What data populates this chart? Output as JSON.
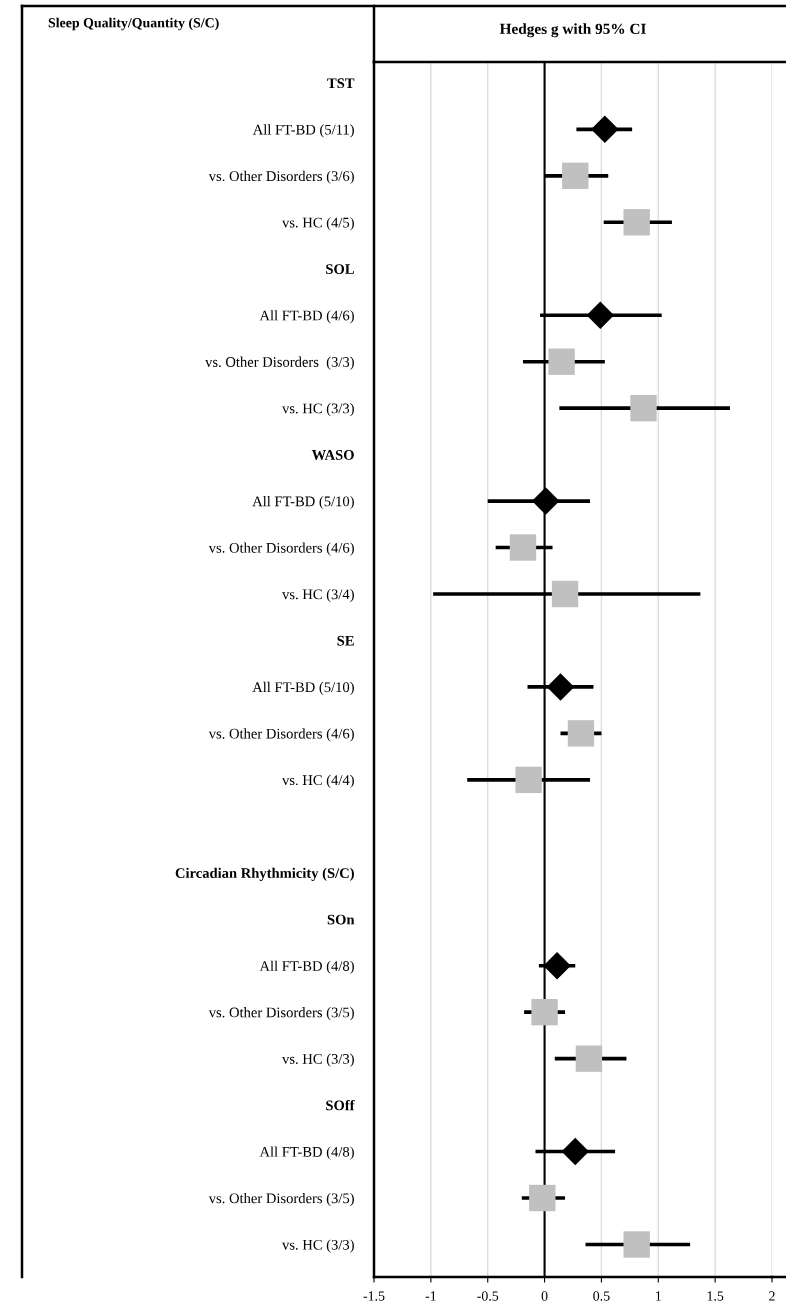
{
  "chart_data": {
    "type": "scatter",
    "orientation": "horizontal",
    "title": "Hedges g with 95% CI",
    "annotations": [
      "Sleep Quality/Quantity (S/C)"
    ],
    "categories": [
      "TST",
      "All FT-BD (5/11)",
      "vs. Other Disorders (3/6)",
      "vs. HC (4/5)",
      "SOL",
      "All FT-BD (4/6)",
      "vs. Other Disorders  (3/3)",
      "vs. HC (3/3)",
      "WASO",
      "All FT-BD (5/10)",
      "vs. Other Disorders (4/6)",
      "vs. HC (3/4)",
      "SE",
      "All FT-BD (5/10)",
      "vs. Other Disorders (4/6)",
      "vs. HC (4/4)",
      null,
      "Circadian Rhythmicity (S/C)",
      "SOn",
      "All FT-BD (4/8)",
      "vs. Other Disorders (3/5)",
      "vs. HC (3/3)",
      "SOff",
      "All FT-BD (4/8)",
      "vs. Other Disorders (3/5)",
      "vs. HC (3/3)"
    ],
    "series": [
      {
        "color": "#000000",
        "marker": "diamond",
        "values": [
          null,
          0.53,
          null,
          null,
          null,
          0.49,
          null,
          null,
          null,
          0.01,
          null,
          null,
          null,
          0.14,
          null,
          null,
          null,
          null,
          null,
          0.11,
          null,
          null,
          null,
          0.27,
          null,
          null
        ],
        "errors": [
          null,
          [
            0.28,
            0.77
          ],
          null,
          null,
          null,
          [
            -0.04,
            1.03
          ],
          null,
          null,
          null,
          [
            -0.5,
            0.4
          ],
          null,
          null,
          null,
          [
            -0.15,
            0.43
          ],
          null,
          null,
          null,
          null,
          null,
          [
            -0.05,
            0.27
          ],
          null,
          null,
          null,
          [
            -0.08,
            0.62
          ],
          null,
          null
        ]
      },
      {
        "color": "#c0c0c0",
        "marker": "square",
        "values": [
          null,
          null,
          0.27,
          0.81,
          null,
          null,
          0.15,
          0.87,
          null,
          null,
          -0.19,
          0.18,
          null,
          null,
          0.32,
          -0.14,
          null,
          null,
          null,
          null,
          0.0,
          0.39,
          null,
          null,
          -0.02,
          0.81
        ],
        "errors": [
          null,
          null,
          [
            0.0,
            0.56
          ],
          [
            0.52,
            1.12
          ],
          null,
          null,
          [
            -0.19,
            0.53
          ],
          [
            0.13,
            1.63
          ],
          null,
          null,
          [
            -0.43,
            0.07
          ],
          [
            -0.98,
            1.37
          ],
          null,
          null,
          [
            0.14,
            0.5
          ],
          [
            -0.68,
            0.4
          ],
          null,
          null,
          null,
          null,
          [
            -0.18,
            0.18
          ],
          [
            0.09,
            0.72
          ],
          null,
          null,
          [
            -0.2,
            0.18
          ],
          [
            0.36,
            1.28
          ]
        ]
      }
    ],
    "xlim": [
      -1.5,
      2
    ],
    "xticks": [
      -1.5,
      -1,
      -0.5,
      0,
      0.5,
      1,
      1.5,
      2
    ],
    "grid": "x",
    "ref_lines": [
      {
        "axis": "x",
        "value": 0,
        "color": "#000000"
      }
    ]
  }
}
